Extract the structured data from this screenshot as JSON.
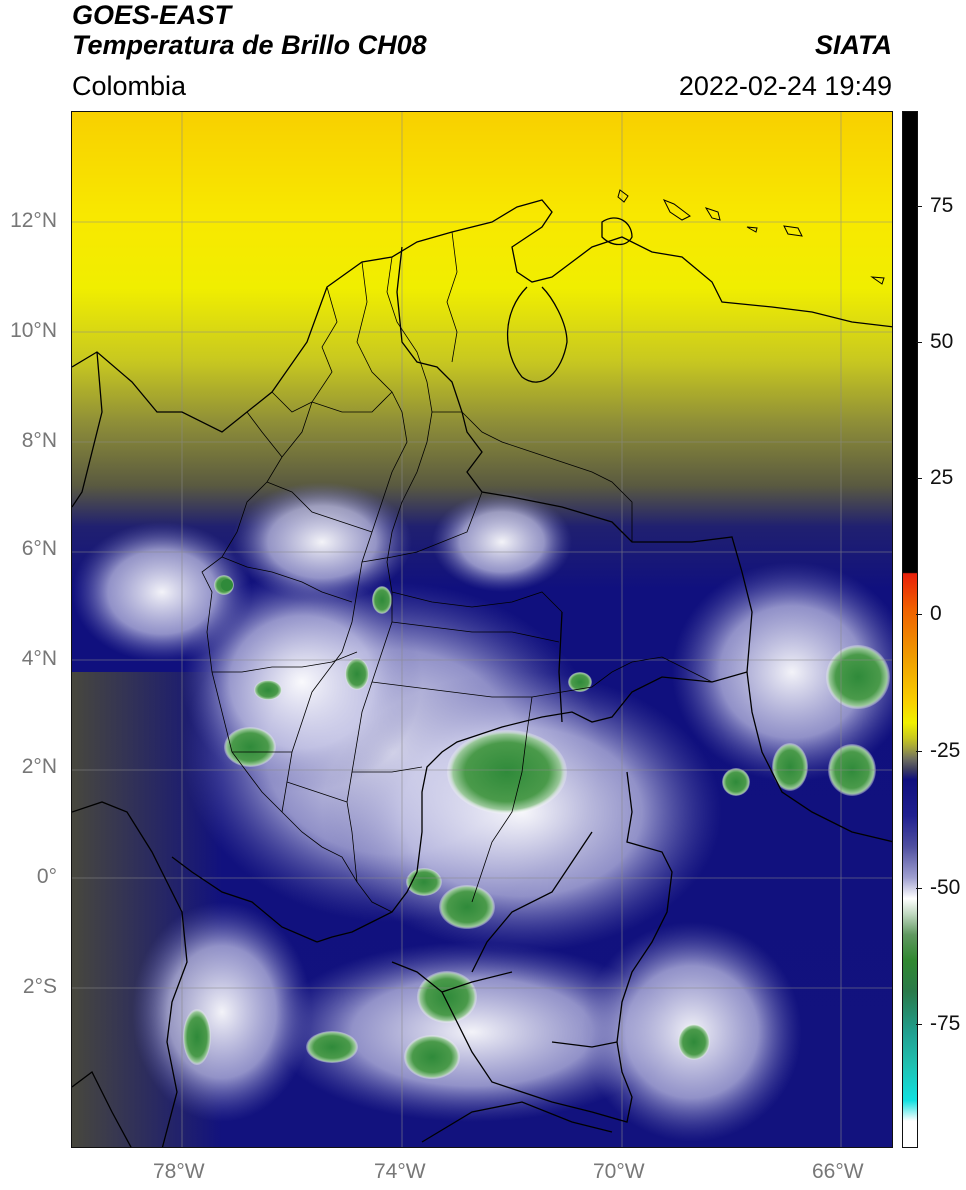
{
  "header": {
    "satellite": "GOES-EAST",
    "product": "Temperatura de Brillo CH08",
    "organization": "SIATA",
    "region": "Colombia",
    "datetime": "2022-02-24 19:49"
  },
  "map": {
    "lat_labels": [
      "12°N",
      "10°N",
      "8°N",
      "6°N",
      "4°N",
      "2°N",
      "0°",
      "2°S"
    ],
    "lon_labels": [
      "78°W",
      "74°W",
      "70°W",
      "66°W"
    ],
    "extent": {
      "lon_min": -80,
      "lon_max": -65,
      "lat_min": -5,
      "lat_max": 14
    }
  },
  "colorbar": {
    "ticks": [
      "75",
      "50",
      "25",
      "0",
      "-25",
      "-50",
      "-75"
    ],
    "colors": {
      "black": "#000000",
      "red": "#e8200a",
      "orange": "#f09000",
      "yellow": "#f8f000",
      "olive": "#505030",
      "navy": "#101080",
      "white": "#ffffff",
      "green": "#3a8a3a",
      "teal": "#20b0a0",
      "cyan": "#10e0e0"
    }
  }
}
